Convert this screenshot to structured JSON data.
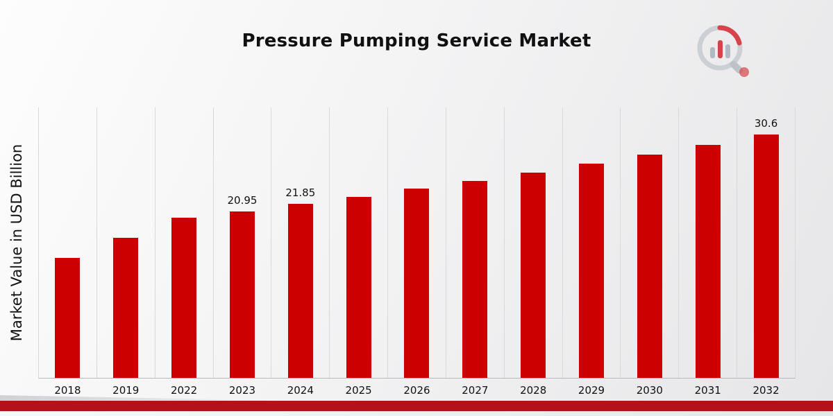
{
  "page": {
    "title": "Pressure Pumping Service Market"
  },
  "branding": {
    "logo_name": "market-research-chart-logo"
  },
  "colors": {
    "bar": "#cc0001",
    "footer_band": "#b31218",
    "gridline": "#d9d9db",
    "baseline": "#b9b9bb",
    "text": "#111111",
    "background_light": "#fdfdfd",
    "background_dark": "#e6e6e8"
  },
  "chart_data": {
    "type": "bar",
    "title": "Pressure Pumping Service Market",
    "xlabel": "",
    "ylabel": "Market Value in USD Billion",
    "categories": [
      "2018",
      "2019",
      "2022",
      "2023",
      "2024",
      "2025",
      "2026",
      "2027",
      "2028",
      "2029",
      "2030",
      "2031",
      "2032"
    ],
    "values": [
      15.05,
      17.65,
      20.1,
      20.95,
      21.85,
      22.8,
      23.8,
      24.8,
      25.85,
      26.95,
      28.1,
      29.3,
      30.6
    ],
    "bar_labels": [
      "",
      "",
      "",
      "20.95",
      "21.85",
      "",
      "",
      "",
      "",
      "",
      "",
      "",
      "30.6"
    ],
    "ylim": [
      0,
      34
    ],
    "grid": "vertical-category-separators",
    "legend": "none",
    "bar_color": "#cc0001"
  }
}
